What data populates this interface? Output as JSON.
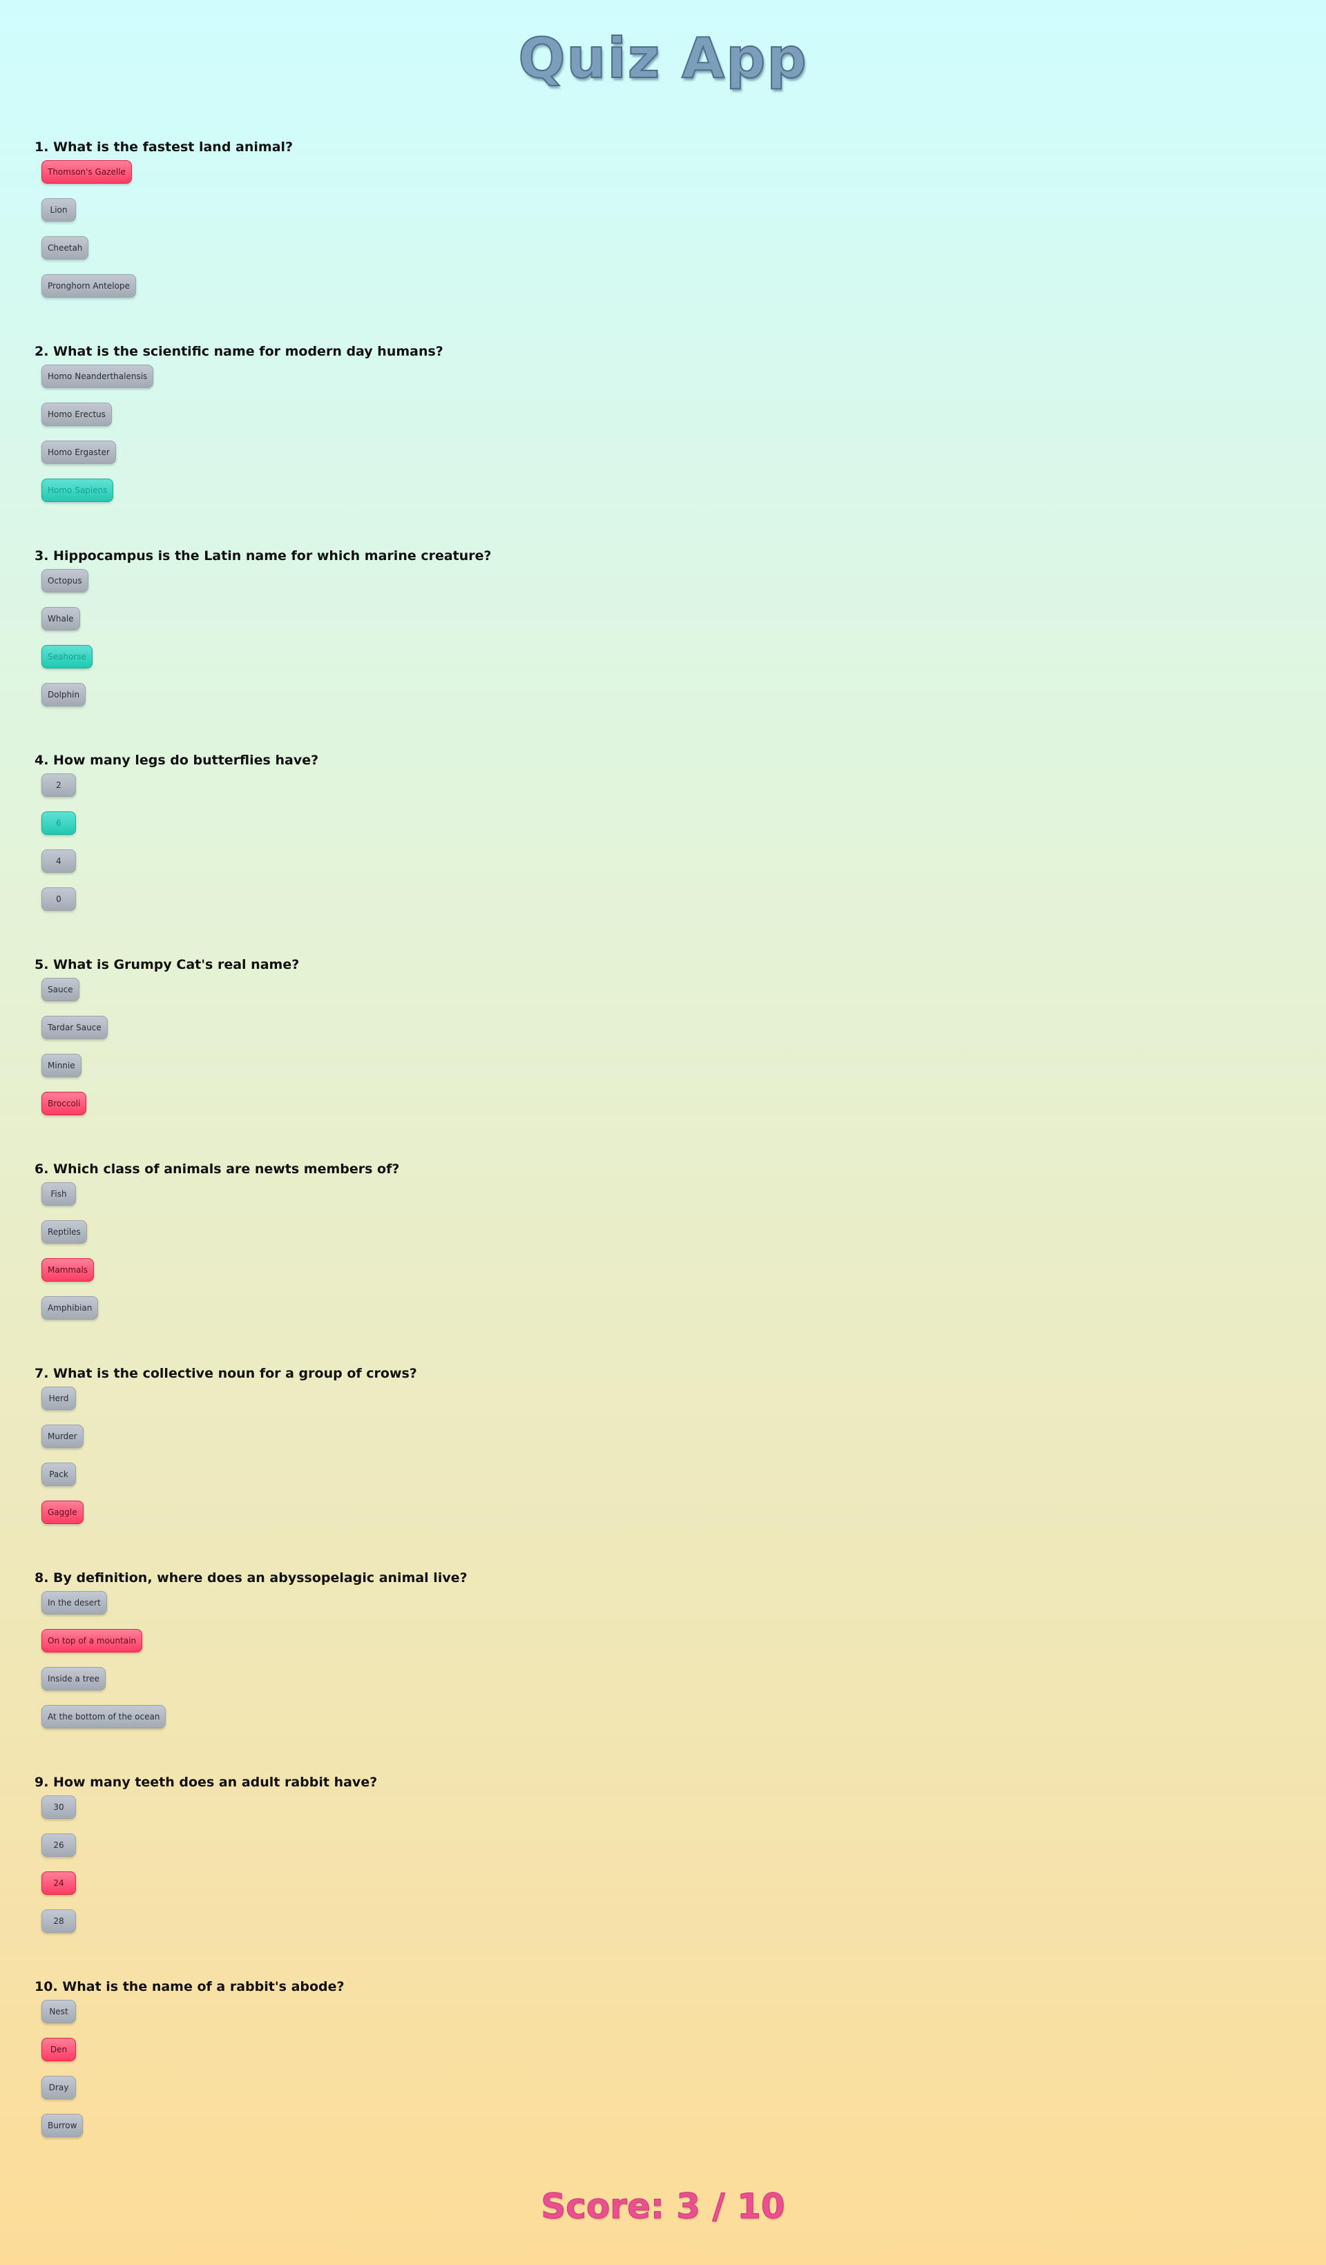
{
  "app": {
    "title": "Quiz App"
  },
  "questions": [
    {
      "text": "1. What is the fastest land animal?",
      "options": [
        {
          "label": "Thomson's Gazelle",
          "state": "wrong"
        },
        {
          "label": "Lion",
          "state": "neutral"
        },
        {
          "label": "Cheetah",
          "state": "neutral"
        },
        {
          "label": "Pronghorn Antelope",
          "state": "neutral"
        }
      ]
    },
    {
      "text": "2. What is the scientific name for modern day humans?",
      "options": [
        {
          "label": "Homo Neanderthalensis",
          "state": "neutral"
        },
        {
          "label": "Homo Erectus",
          "state": "neutral"
        },
        {
          "label": "Homo Ergaster",
          "state": "neutral"
        },
        {
          "label": "Homo Sapiens",
          "state": "correct"
        }
      ]
    },
    {
      "text": "3. Hippocampus is the Latin name for which marine creature?",
      "options": [
        {
          "label": "Octopus",
          "state": "neutral"
        },
        {
          "label": "Whale",
          "state": "neutral"
        },
        {
          "label": "Seahorse",
          "state": "correct"
        },
        {
          "label": "Dolphin",
          "state": "neutral"
        }
      ]
    },
    {
      "text": "4. How many legs do butterflies have?",
      "options": [
        {
          "label": "2",
          "state": "neutral"
        },
        {
          "label": "6",
          "state": "correct"
        },
        {
          "label": "4",
          "state": "neutral"
        },
        {
          "label": "0",
          "state": "neutral"
        }
      ]
    },
    {
      "text": "5. What is Grumpy Cat's real name?",
      "options": [
        {
          "label": "Sauce",
          "state": "neutral"
        },
        {
          "label": "Tardar Sauce",
          "state": "neutral"
        },
        {
          "label": "Minnie",
          "state": "neutral"
        },
        {
          "label": "Broccoli",
          "state": "wrong"
        }
      ]
    },
    {
      "text": "6. Which class of animals are newts members of?",
      "options": [
        {
          "label": "Fish",
          "state": "neutral"
        },
        {
          "label": "Reptiles",
          "state": "neutral"
        },
        {
          "label": "Mammals",
          "state": "wrong"
        },
        {
          "label": "Amphibian",
          "state": "neutral"
        }
      ]
    },
    {
      "text": "7. What is the collective noun for a group of crows?",
      "options": [
        {
          "label": "Herd",
          "state": "neutral"
        },
        {
          "label": "Murder",
          "state": "neutral"
        },
        {
          "label": "Pack",
          "state": "neutral"
        },
        {
          "label": "Gaggle",
          "state": "wrong"
        }
      ]
    },
    {
      "text": "8. By definition, where does an abyssopelagic animal live?",
      "options": [
        {
          "label": "In the desert",
          "state": "neutral"
        },
        {
          "label": "On top of a mountain",
          "state": "wrong"
        },
        {
          "label": "Inside a tree",
          "state": "neutral"
        },
        {
          "label": "At the bottom of the ocean",
          "state": "neutral"
        }
      ]
    },
    {
      "text": "9. How many teeth does an adult rabbit have?",
      "options": [
        {
          "label": "30",
          "state": "neutral"
        },
        {
          "label": "26",
          "state": "neutral"
        },
        {
          "label": "24",
          "state": "wrong"
        },
        {
          "label": "28",
          "state": "neutral"
        }
      ]
    },
    {
      "text": "10. What is the name of a rabbit's abode?",
      "options": [
        {
          "label": "Nest",
          "state": "neutral"
        },
        {
          "label": "Den",
          "state": "wrong"
        },
        {
          "label": "Dray",
          "state": "neutral"
        },
        {
          "label": "Burrow",
          "state": "neutral"
        }
      ]
    }
  ],
  "score": {
    "text": "Score: 3 / 10"
  },
  "colors": {
    "title": "#7b9fbb",
    "wrong": "#ff3c63",
    "correct": "#22c8b2",
    "neutral": "#a2aab4",
    "score": "#ea4f8e"
  }
}
